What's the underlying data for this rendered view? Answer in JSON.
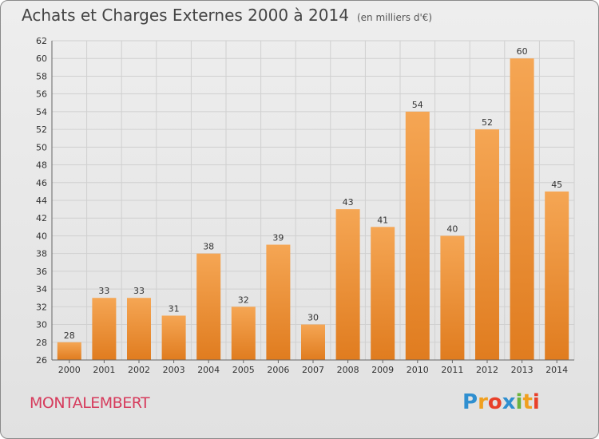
{
  "header": {
    "title": "Achats et Charges Externes 2000 à 2014",
    "subtitle": "(en milliers d'€)"
  },
  "footer": {
    "commune": "MONTALEMBERT",
    "logo_letters": [
      "P",
      "r",
      "o",
      "x",
      "i",
      "t",
      "i"
    ],
    "logo_colors": [
      "#2f8fd0",
      "#f0a020",
      "#e8402a",
      "#2f8fd0",
      "#6cb33e",
      "#f0a020",
      "#e8402a"
    ]
  },
  "colors": {
    "bar_top": "#f5a654",
    "bar_bottom": "#e07c1f",
    "grid": "#d0d0d0",
    "axis": "#666666"
  },
  "chart_data": {
    "type": "bar",
    "title": "Achats et Charges Externes 2000 à 2014",
    "subtitle": "(en milliers d'€)",
    "xlabel": "",
    "ylabel": "",
    "categories": [
      "2000",
      "2001",
      "2002",
      "2003",
      "2004",
      "2005",
      "2006",
      "2007",
      "2008",
      "2009",
      "2010",
      "2011",
      "2012",
      "2013",
      "2014"
    ],
    "values": [
      28,
      33,
      33,
      31,
      38,
      32,
      39,
      30,
      43,
      41,
      54,
      40,
      52,
      60,
      45
    ],
    "ylim": [
      26,
      62
    ],
    "yticks": [
      26,
      28,
      30,
      32,
      34,
      36,
      38,
      40,
      42,
      44,
      46,
      48,
      50,
      52,
      54,
      56,
      58,
      60,
      62
    ],
    "grid": true,
    "legend": "none"
  }
}
